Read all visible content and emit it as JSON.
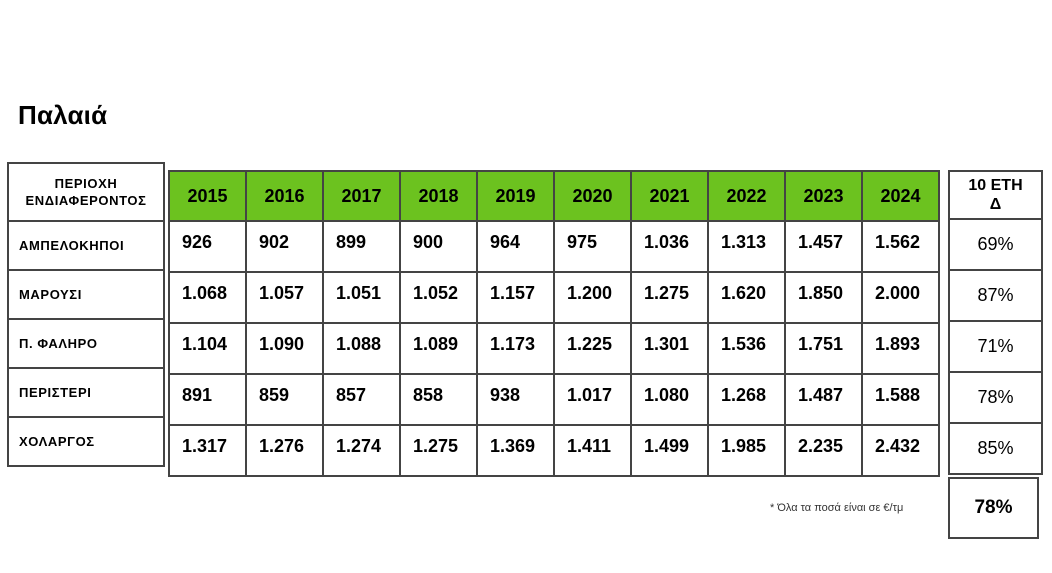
{
  "title": "Παλαιά",
  "header": {
    "region_line1": "ΠΕΡΙΟΧΗ",
    "region_line2": "ΕΝΔΙΑΦΕΡΟΝΤΟΣ",
    "change_line1": "10 ΕΤΗ",
    "change_line2": "Δ"
  },
  "years": [
    "2015",
    "2016",
    "2017",
    "2018",
    "2019",
    "2020",
    "2021",
    "2022",
    "2023",
    "2024"
  ],
  "rows": [
    {
      "region": "ΑΜΠΕΛΟΚΗΠΟΙ",
      "values": [
        "926",
        "902",
        "899",
        "900",
        "964",
        "975",
        "1.036",
        "1.313",
        "1.457",
        "1.562"
      ],
      "change": "69%"
    },
    {
      "region": "ΜΑΡΟΥΣΙ",
      "values": [
        "1.068",
        "1.057",
        "1.051",
        "1.052",
        "1.157",
        "1.200",
        "1.275",
        "1.620",
        "1.850",
        "2.000"
      ],
      "change": "87%"
    },
    {
      "region": "Π. ΦΑΛΗΡΟ",
      "values": [
        "1.104",
        "1.090",
        "1.088",
        "1.089",
        "1.173",
        "1.225",
        "1.301",
        "1.536",
        "1.751",
        "1.893"
      ],
      "change": "71%"
    },
    {
      "region": "ΠΕΡΙΣΤΕΡΙ",
      "values": [
        "891",
        "859",
        "857",
        "858",
        "938",
        "1.017",
        "1.080",
        "1.268",
        "1.487",
        "1.588"
      ],
      "change": "78%"
    },
    {
      "region": "ΧΟΛΑΡΓΟΣ",
      "values": [
        "1.317",
        "1.276",
        "1.274",
        "1.275",
        "1.369",
        "1.411",
        "1.499",
        "1.985",
        "2.235",
        "2.432"
      ],
      "change": "85%"
    }
  ],
  "average_change": "78%",
  "note": "* Όλα τα ποσά είναι σε €/τμ",
  "colors": {
    "header_green": "#6cc21f",
    "border": "#444444"
  }
}
